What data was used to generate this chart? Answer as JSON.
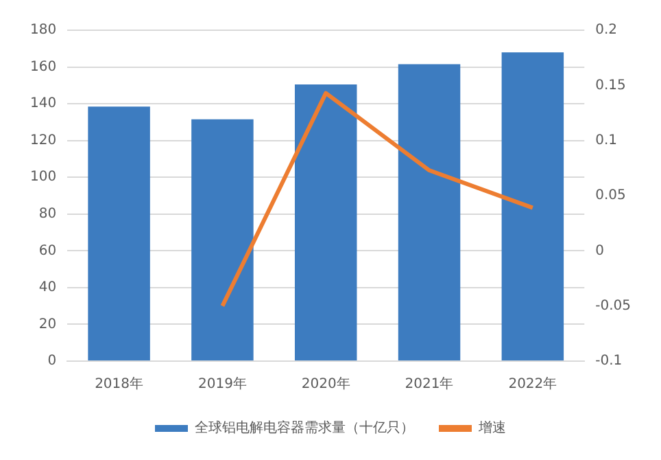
{
  "chart_data": {
    "type": "bar",
    "categories": [
      "2018年",
      "2019年",
      "2020年",
      "2021年",
      "2022年"
    ],
    "series": [
      {
        "name": "全球铝电解电容器需求量（十亿只）",
        "color": "#3d7cc0",
        "values": [
          138.5,
          131.5,
          150.5,
          161.5,
          168
        ]
      },
      {
        "name": "增速",
        "type": "line",
        "axis": "y2",
        "color": "#ed7d31",
        "values": [
          null,
          -0.05,
          0.143,
          0.073,
          0.039
        ]
      }
    ],
    "ylim": [
      0,
      180
    ],
    "yticks": [
      0,
      20,
      40,
      60,
      80,
      100,
      120,
      140,
      160,
      180
    ],
    "y2lim": [
      -0.1,
      0.2
    ],
    "y2ticks": [
      -0.1,
      -0.05,
      0,
      0.05,
      0.1,
      0.15,
      0.2
    ],
    "grid": "y",
    "legend": "bottom",
    "marker": "none",
    "line_style": "solid"
  }
}
